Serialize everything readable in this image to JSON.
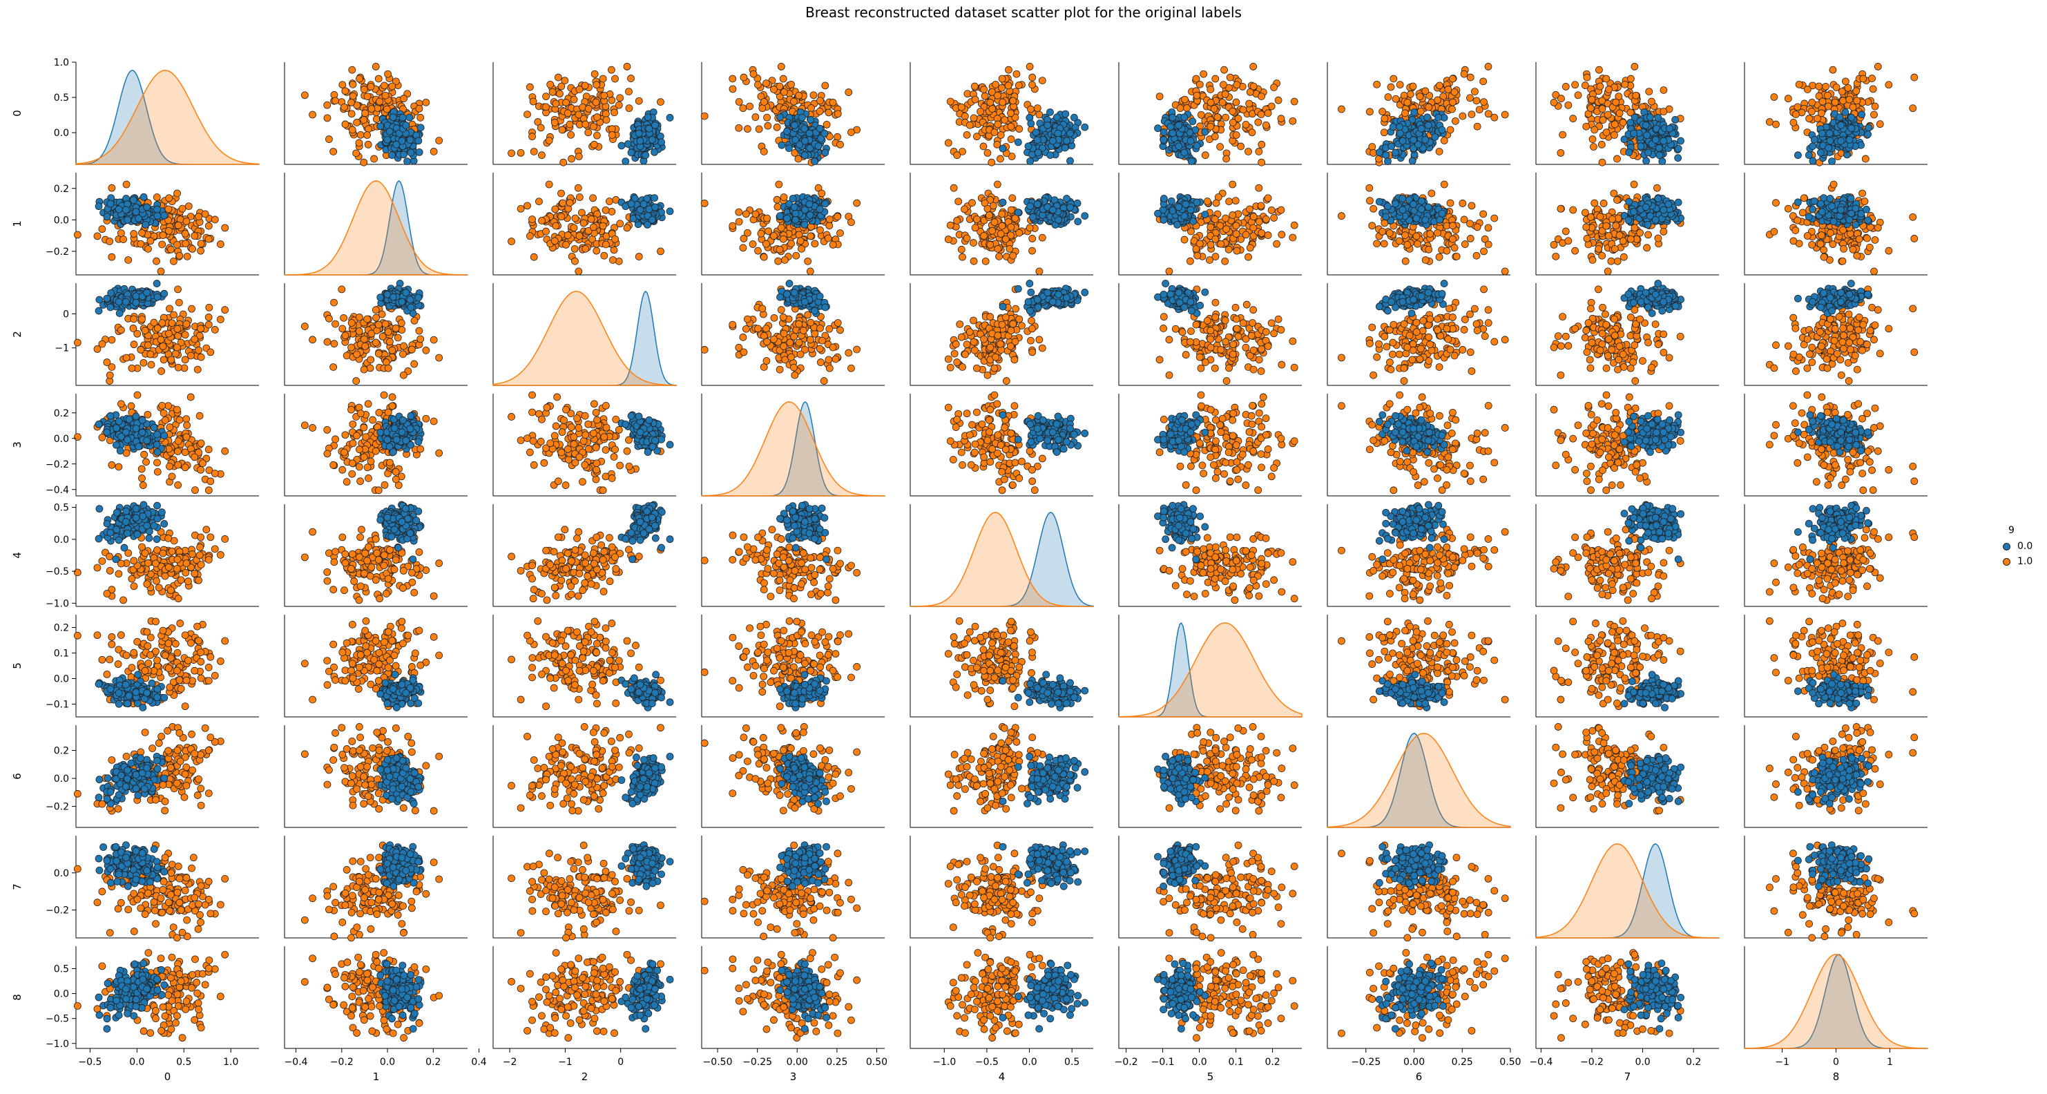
{
  "title": "Breast reconstructed dataset scatter plot for the original labels",
  "legend": {
    "title": "9",
    "entries": [
      {
        "label": "0.0",
        "color": "#1f77b4"
      },
      {
        "label": "1.0",
        "color": "#ff7f0e"
      }
    ]
  },
  "chart_data": {
    "type": "scatter",
    "layout": "pairplot 9x9, kde on diagonal, hue = 9",
    "variables": [
      {
        "name": "0",
        "lim": [
          -0.65,
          1.3
        ],
        "ticks": [
          -0.5,
          0.0,
          0.5,
          1.0
        ],
        "tick_labels": [
          "−0.5",
          "0.0",
          "0.5",
          "1.0"
        ]
      },
      {
        "name": "1",
        "lim": [
          -0.45,
          0.35
        ],
        "ticks": [
          -0.4,
          -0.2,
          0.0,
          0.2,
          0.4
        ],
        "tick_labels": [
          "−0.4",
          "−0.2",
          "0.0",
          "0.2",
          "0.4"
        ]
      },
      {
        "name": "2",
        "lim": [
          -2.3,
          1.0
        ],
        "ticks": [
          -2,
          -1,
          0
        ],
        "tick_labels": [
          "−2",
          "−1",
          "0"
        ]
      },
      {
        "name": "3",
        "lim": [
          -0.6,
          0.55
        ],
        "ticks": [
          -0.5,
          -0.25,
          0.0,
          0.25,
          0.5
        ],
        "tick_labels": [
          "−0.50",
          "−0.25",
          "0.00",
          "0.25",
          "0.50"
        ]
      },
      {
        "name": "4",
        "lim": [
          -1.4,
          0.75
        ],
        "ticks": [
          -1.0,
          -0.5,
          0.0,
          0.5
        ],
        "tick_labels": [
          "−1.0",
          "−0.5",
          "0.0",
          "0.5"
        ]
      },
      {
        "name": "5",
        "lim": [
          -0.22,
          0.28
        ],
        "ticks": [
          -0.2,
          -0.1,
          0.0,
          0.1,
          0.2
        ],
        "tick_labels": [
          "−0.2",
          "−0.1",
          "0.0",
          "0.1",
          "0.2"
        ]
      },
      {
        "name": "6",
        "lim": [
          -0.45,
          0.5
        ],
        "ticks": [
          -0.25,
          0.0,
          0.25,
          0.5
        ],
        "tick_labels": [
          "−0.25",
          "0.00",
          "0.25",
          "0.50"
        ]
      },
      {
        "name": "7",
        "lim": [
          -0.42,
          0.3
        ],
        "ticks": [
          -0.4,
          -0.2,
          0.0,
          0.2
        ],
        "tick_labels": [
          "−0.4",
          "−0.2",
          "0.0",
          "0.2"
        ]
      },
      {
        "name": "8",
        "lim": [
          -1.7,
          1.7
        ],
        "ticks": [
          -1,
          0,
          1
        ],
        "tick_labels": [
          "−1",
          "0",
          "1"
        ]
      }
    ],
    "y_ticks": [
      {
        "ticks": [
          0.0,
          0.5,
          1.0
        ],
        "tick_labels": [
          "0.0",
          "0.5",
          "1.0"
        ]
      },
      {
        "ticks": [
          -0.2,
          0.0,
          0.2
        ],
        "tick_labels": [
          "−0.2",
          "0.0",
          "0.2"
        ]
      },
      {
        "ticks": [
          -1,
          0
        ],
        "tick_labels": [
          "−1",
          "0"
        ]
      },
      {
        "ticks": [
          -0.4,
          -0.2,
          0.0,
          0.2
        ],
        "tick_labels": [
          "−0.4",
          "−0.2",
          "0.0",
          "0.2"
        ]
      },
      {
        "ticks": [
          -1.0,
          -0.5,
          0.0,
          0.5
        ],
        "tick_labels": [
          "−1.0",
          "−0.5",
          "0.0",
          "0.5"
        ]
      },
      {
        "ticks": [
          -0.1,
          0.0,
          0.1,
          0.2
        ],
        "tick_labels": [
          "−0.1",
          "0.0",
          "0.1",
          "0.2"
        ]
      },
      {
        "ticks": [
          -0.2,
          0.0,
          0.2
        ],
        "tick_labels": [
          "−0.2",
          "0.0",
          "0.2"
        ]
      },
      {
        "ticks": [
          -0.2,
          0.0
        ],
        "tick_labels": [
          "−0.2",
          "0.0"
        ]
      },
      {
        "ticks": [
          -1.0,
          -0.5,
          0.0,
          0.5
        ],
        "tick_labels": [
          "−1.0",
          "−0.5",
          "0.0",
          "0.5"
        ]
      }
    ],
    "y_lims": [
      [
        -0.45,
        1.0
      ],
      [
        -0.35,
        0.3
      ],
      [
        -2.1,
        0.9
      ],
      [
        -0.45,
        0.35
      ],
      [
        -1.05,
        0.55
      ],
      [
        -0.15,
        0.25
      ],
      [
        -0.35,
        0.38
      ],
      [
        -0.35,
        0.2
      ],
      [
        -1.1,
        0.95
      ]
    ],
    "groups": [
      {
        "label": "0.0",
        "color": "#1f77b4",
        "mean": [
          -0.05,
          0.05,
          0.45,
          0.05,
          0.25,
          -0.05,
          0.0,
          0.05,
          0.05
        ],
        "sd": [
          0.15,
          0.04,
          0.15,
          0.06,
          0.15,
          0.02,
          0.07,
          0.05,
          0.25
        ]
      },
      {
        "label": "1.0",
        "color": "#ff7f0e",
        "mean": [
          0.3,
          -0.05,
          -0.8,
          -0.05,
          -0.4,
          0.07,
          0.05,
          -0.1,
          0.0
        ],
        "sd": [
          0.3,
          0.1,
          0.5,
          0.15,
          0.25,
          0.08,
          0.15,
          0.1,
          0.45
        ]
      }
    ],
    "points_per_group": 150
  }
}
